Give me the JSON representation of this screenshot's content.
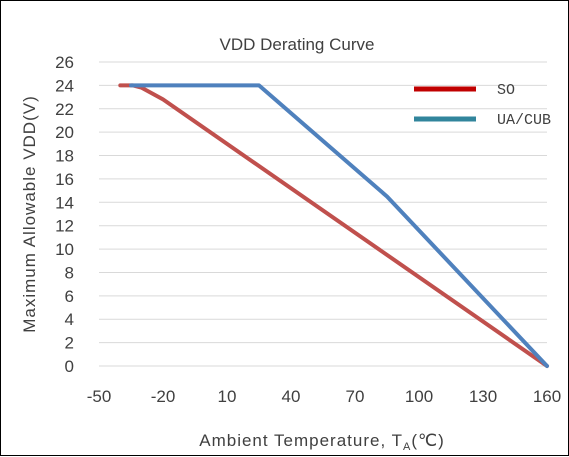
{
  "chart_data": {
    "type": "line",
    "title": "VDD Derating Curve",
    "xlabel": "Ambient Temperature, T",
    "xlabel_sub": "A",
    "xlabel_unit": "(℃)",
    "ylabel": "Maximum Allowable VDD(V)",
    "xlim": [
      -50,
      160
    ],
    "ylim": [
      0,
      26
    ],
    "x_ticks": [
      -50,
      -20,
      10,
      40,
      70,
      100,
      130,
      160
    ],
    "y_ticks": [
      0,
      2,
      4,
      6,
      8,
      10,
      12,
      14,
      16,
      18,
      20,
      22,
      24,
      26
    ],
    "grid": true,
    "legend_position": "top-right",
    "series": [
      {
        "name": "SO",
        "color": "#c0504d",
        "points": [
          [
            -40,
            24
          ],
          [
            -34,
            24
          ],
          [
            -30,
            23.8
          ],
          [
            -20,
            22.8
          ],
          [
            160,
            0
          ]
        ]
      },
      {
        "name": "UA/CUB",
        "color": "#4f81bd",
        "points": [
          [
            -35,
            24
          ],
          [
            25,
            24
          ],
          [
            85,
            14.5
          ],
          [
            160,
            0
          ]
        ]
      }
    ],
    "legend_colors": [
      "#c00000",
      "#31859c"
    ]
  }
}
